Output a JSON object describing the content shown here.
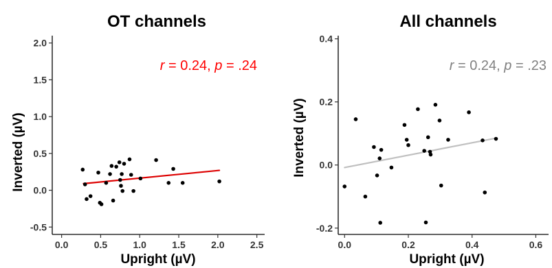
{
  "chart_data": [
    {
      "type": "scatter",
      "title": "OT channels",
      "xlabel": "Upright (µV)",
      "ylabel": "Inverted (µV)",
      "xlim": [
        -0.12,
        2.6
      ],
      "ylim": [
        -0.6,
        2.1
      ],
      "xticks": [
        0.0,
        0.5,
        1.0,
        1.5,
        2.0,
        2.5
      ],
      "xtick_labels": [
        "0.0",
        "0.5",
        "1.0",
        "1.5",
        "2.0",
        "2.5"
      ],
      "yticks": [
        -0.5,
        0.0,
        0.5,
        1.0,
        1.5,
        2.0
      ],
      "ytick_labels": [
        "-0.5",
        "0.0",
        "0.5",
        "1.0",
        "1.5",
        "2.0"
      ],
      "grid": false,
      "annotation": {
        "r_label": "r",
        "r_value": "0.24",
        "p_label": "p",
        "p_value": ".24",
        "color": "#ff0000"
      },
      "fit_line": {
        "x": [
          0.28,
          2.02
        ],
        "y": [
          0.09,
          0.27
        ],
        "color": "#dd0000"
      },
      "points": [
        {
          "x": 0.27,
          "y": 0.28
        },
        {
          "x": 0.3,
          "y": 0.08
        },
        {
          "x": 0.32,
          "y": -0.12
        },
        {
          "x": 0.37,
          "y": -0.08
        },
        {
          "x": 0.47,
          "y": 0.24
        },
        {
          "x": 0.49,
          "y": -0.17
        },
        {
          "x": 0.51,
          "y": -0.19
        },
        {
          "x": 0.57,
          "y": 0.1
        },
        {
          "x": 0.62,
          "y": 0.22
        },
        {
          "x": 0.64,
          "y": 0.33
        },
        {
          "x": 0.66,
          "y": -0.14
        },
        {
          "x": 0.7,
          "y": 0.32
        },
        {
          "x": 0.74,
          "y": 0.38
        },
        {
          "x": 0.75,
          "y": 0.14
        },
        {
          "x": 0.76,
          "y": 0.06
        },
        {
          "x": 0.77,
          "y": 0.22
        },
        {
          "x": 0.78,
          "y": -0.01
        },
        {
          "x": 0.8,
          "y": 0.36
        },
        {
          "x": 0.87,
          "y": 0.42
        },
        {
          "x": 0.89,
          "y": 0.21
        },
        {
          "x": 0.92,
          "y": -0.01
        },
        {
          "x": 1.01,
          "y": 0.16
        },
        {
          "x": 1.21,
          "y": 0.41
        },
        {
          "x": 1.37,
          "y": 0.1
        },
        {
          "x": 1.43,
          "y": 0.29
        },
        {
          "x": 1.55,
          "y": 0.1
        },
        {
          "x": 2.02,
          "y": 0.12
        }
      ]
    },
    {
      "type": "scatter",
      "title": "All channels",
      "xlabel": "Upright (µV)",
      "ylabel": "Inverted (µV)",
      "xlim": [
        -0.02,
        0.64
      ],
      "ylim": [
        -0.22,
        0.41
      ],
      "xticks": [
        0.0,
        0.2,
        0.4,
        0.6
      ],
      "xtick_labels": [
        "0.0",
        "0.2",
        "0.4",
        "0.6"
      ],
      "yticks": [
        -0.2,
        0.0,
        0.2,
        0.4
      ],
      "ytick_labels": [
        "-0.2",
        "0.0",
        "0.2",
        "0.4"
      ],
      "grid": false,
      "annotation": {
        "r_label": "r",
        "r_value": "0.24",
        "p_label": "p",
        "p_value": ".23",
        "color": "#808080"
      },
      "fit_line": {
        "x": [
          0.0,
          0.475
        ],
        "y": [
          -0.008,
          0.085
        ],
        "color": "#c0c0c0"
      },
      "points": [
        {
          "x": 0.0,
          "y": -0.068
        },
        {
          "x": 0.035,
          "y": 0.145
        },
        {
          "x": 0.065,
          "y": -0.1
        },
        {
          "x": 0.092,
          "y": 0.057
        },
        {
          "x": 0.102,
          "y": -0.033
        },
        {
          "x": 0.11,
          "y": 0.021
        },
        {
          "x": 0.112,
          "y": -0.183
        },
        {
          "x": 0.115,
          "y": 0.048
        },
        {
          "x": 0.147,
          "y": -0.008
        },
        {
          "x": 0.188,
          "y": 0.127
        },
        {
          "x": 0.195,
          "y": 0.08
        },
        {
          "x": 0.2,
          "y": 0.063
        },
        {
          "x": 0.23,
          "y": 0.177
        },
        {
          "x": 0.25,
          "y": 0.045
        },
        {
          "x": 0.255,
          "y": -0.182
        },
        {
          "x": 0.262,
          "y": 0.088
        },
        {
          "x": 0.268,
          "y": 0.042
        },
        {
          "x": 0.27,
          "y": 0.033
        },
        {
          "x": 0.285,
          "y": 0.191
        },
        {
          "x": 0.298,
          "y": 0.141
        },
        {
          "x": 0.303,
          "y": -0.065
        },
        {
          "x": 0.325,
          "y": 0.08
        },
        {
          "x": 0.39,
          "y": 0.167
        },
        {
          "x": 0.433,
          "y": 0.078
        },
        {
          "x": 0.44,
          "y": -0.087
        },
        {
          "x": 0.475,
          "y": 0.083
        }
      ]
    }
  ]
}
